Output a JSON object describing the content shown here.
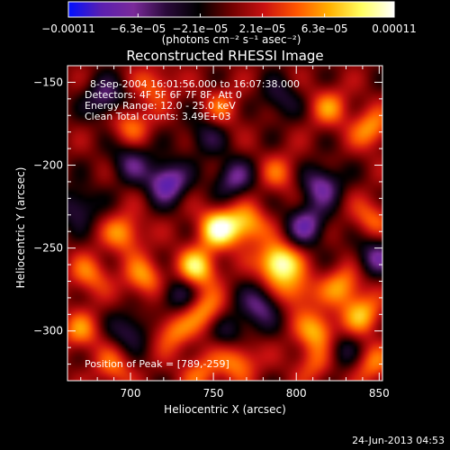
{
  "chart_data": {
    "type": "heatmap",
    "title": "Reconstructed RHESSI Image",
    "xlabel": "Heliocentric X (arcsec)",
    "ylabel": "Heliocentric Y (arcsec)",
    "xlim": [
      662,
      852
    ],
    "ylim": [
      -330,
      -140
    ],
    "x_ticks": [
      700,
      750,
      800,
      850
    ],
    "x_tick_labels": [
      "700",
      "750",
      "800",
      "850"
    ],
    "y_ticks": [
      -150,
      -200,
      -250,
      -300
    ],
    "y_tick_labels": [
      "−150",
      "−200",
      "−250",
      "−300"
    ],
    "colorbar": {
      "min": -0.00011,
      "max": 0.00011,
      "ticks": [
        -0.00011,
        -6.3e-05,
        -2.1e-05,
        2.1e-05,
        6.3e-05,
        0.00011
      ],
      "tick_labels": [
        "−0.00011",
        "−6.3e−05",
        "−2.1e−05",
        "2.1e−05",
        "6.3e−05",
        "0.00011"
      ],
      "label": "(photons cm⁻² s⁻¹ asec⁻²)",
      "colors": [
        "#0010ff",
        "#5a1fb0",
        "#7a2a9a",
        "#2a0a3a",
        "#000000",
        "#700000",
        "#c81010",
        "#ff5500",
        "#ffb000",
        "#ffff60",
        "#ffffff"
      ]
    },
    "info_lines": [
      "8-Sep-2004 16:01:56.000 to 16:07:38.000",
      "Detectors: 4F 5F 6F 7F 8F, Att 0",
      "Energy Range: 12.0 - 25.0 keV",
      "Clean     Total counts: 3.49E+03"
    ],
    "peak_label": "Position of Peak = [789,-259]",
    "peak": {
      "x": 789,
      "y": -259
    },
    "sources": [
      {
        "x": 789,
        "y": -259,
        "value": 0.00011
      },
      {
        "x": 753,
        "y": -238,
        "value": 9.5e-05
      },
      {
        "x": 740,
        "y": -262,
        "value": 8.5e-05
      },
      {
        "x": 770,
        "y": -236,
        "value": 7e-05
      },
      {
        "x": 813,
        "y": -300,
        "value": 7e-05
      },
      {
        "x": 840,
        "y": -290,
        "value": 6.5e-05
      },
      {
        "x": 828,
        "y": -273,
        "value": 6e-05
      },
      {
        "x": 696,
        "y": -241,
        "value": 6e-05
      },
      {
        "x": 708,
        "y": -268,
        "value": 6e-05
      },
      {
        "x": 725,
        "y": -300,
        "value": 5.5e-05
      },
      {
        "x": 745,
        "y": -288,
        "value": 6e-05
      },
      {
        "x": 765,
        "y": -318,
        "value": 6e-05
      },
      {
        "x": 800,
        "y": -276,
        "value": 5.5e-05
      },
      {
        "x": 675,
        "y": -266,
        "value": 5e-05
      },
      {
        "x": 700,
        "y": -175,
        "value": 5e-05
      },
      {
        "x": 715,
        "y": -152,
        "value": 4.5e-05
      },
      {
        "x": 755,
        "y": -165,
        "value": 4e-05
      },
      {
        "x": 820,
        "y": -165,
        "value": 5e-05
      },
      {
        "x": 845,
        "y": -178,
        "value": 6e-05
      },
      {
        "x": 790,
        "y": -205,
        "value": 4e-05
      },
      {
        "x": 845,
        "y": -232,
        "value": 4.5e-05
      },
      {
        "x": 845,
        "y": -320,
        "value": 5e-05
      },
      {
        "x": 690,
        "y": -322,
        "value": 4.5e-05
      },
      {
        "x": 742,
        "y": -325,
        "value": 4.5e-05
      },
      {
        "x": 810,
        "y": -320,
        "value": 4e-05
      },
      {
        "x": 670,
        "y": -300,
        "value": 5e-05
      },
      {
        "x": 722,
        "y": -210,
        "value": -9e-05
      },
      {
        "x": 700,
        "y": -198,
        "value": -5e-05
      },
      {
        "x": 762,
        "y": -208,
        "value": -6e-05
      },
      {
        "x": 685,
        "y": -160,
        "value": -6e-05
      },
      {
        "x": 806,
        "y": -236,
        "value": -7e-05
      },
      {
        "x": 815,
        "y": -212,
        "value": -7e-05
      },
      {
        "x": 778,
        "y": -285,
        "value": -6e-05
      },
      {
        "x": 728,
        "y": -278,
        "value": -5e-05
      },
      {
        "x": 848,
        "y": -255,
        "value": -6e-05
      },
      {
        "x": 668,
        "y": -225,
        "value": -5e-05
      },
      {
        "x": 700,
        "y": -300,
        "value": -5e-05
      },
      {
        "x": 760,
        "y": -300,
        "value": -4e-05
      },
      {
        "x": 828,
        "y": -312,
        "value": -4e-05
      },
      {
        "x": 790,
        "y": -160,
        "value": -4e-05
      },
      {
        "x": 745,
        "y": -182,
        "value": -4e-05
      }
    ]
  },
  "footer": {
    "timestamp": "24-Jun-2013 04:53"
  }
}
